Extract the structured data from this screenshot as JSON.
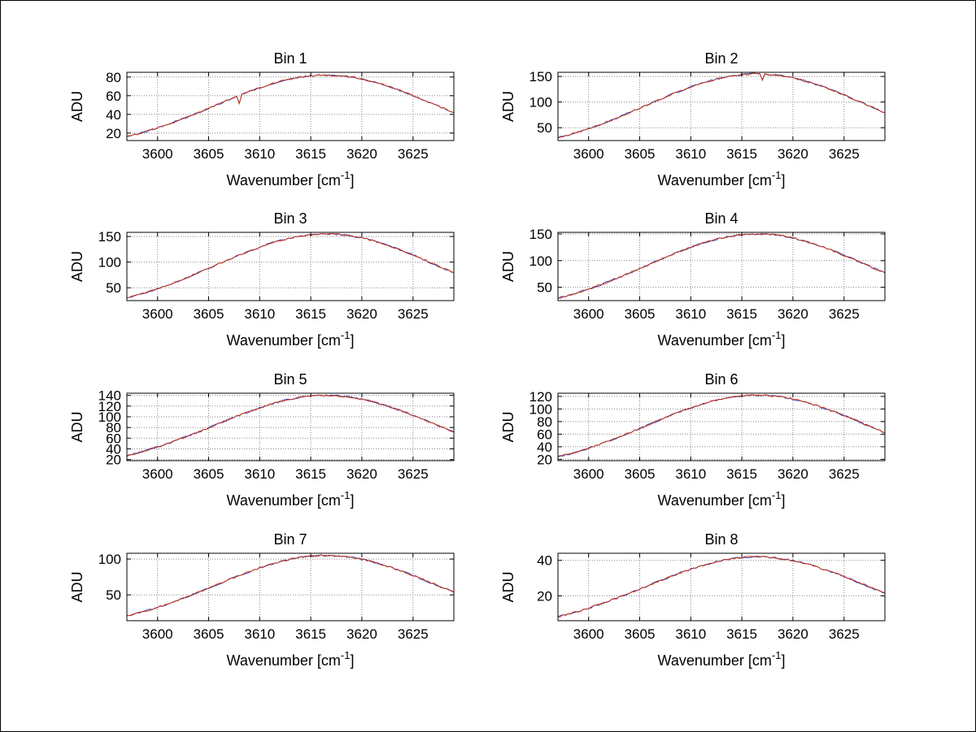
{
  "figure": {
    "background": "#ffffff",
    "border_color": "#000000",
    "grid_color": "#888888",
    "axis_color": "#000000"
  },
  "chart_data": {
    "x_values": [
      3597,
      3598,
      3599,
      3600,
      3601,
      3602,
      3603,
      3604,
      3605,
      3606,
      3607,
      3608,
      3609,
      3610,
      3611,
      3612,
      3613,
      3614,
      3615,
      3616,
      3617,
      3618,
      3619,
      3620,
      3621,
      3622,
      3623,
      3624,
      3625,
      3626,
      3627,
      3628,
      3629
    ],
    "charts": [
      {
        "id": "bin-1",
        "type": "line",
        "title": "Bin 1",
        "xlabel_main": "Wavenumber [cm",
        "xlabel_sup": "-1",
        "xlabel_close": "]",
        "ylabel": "ADU",
        "xlim": [
          3597,
          3629
        ],
        "ylim": [
          12,
          85
        ],
        "x_ticks": [
          3600,
          3605,
          3610,
          3615,
          3620,
          3625
        ],
        "y_ticks": [
          20,
          40,
          60,
          80
        ],
        "grid": true,
        "series": [
          {
            "name": "trace-blue",
            "color": "#3344bb"
          },
          {
            "name": "trace-red",
            "color": "#cc3311"
          }
        ],
        "values": [
          16.1,
          18.9,
          22.1,
          25.5,
          29.3,
          33.3,
          37.6,
          42.0,
          46.5,
          51.1,
          55.7,
          60.2,
          64.5,
          68.4,
          72.0,
          75.2,
          77.8,
          79.9,
          81.2,
          81.9,
          81.9,
          81.2,
          79.9,
          77.8,
          75.2,
          72.0,
          68.4,
          64.5,
          60.2,
          55.7,
          51.1,
          46.5,
          42.0
        ],
        "dips": [
          {
            "x": 3608,
            "depth": 8
          }
        ]
      },
      {
        "id": "bin-2",
        "type": "line",
        "title": "Bin 2",
        "xlabel_main": "Wavenumber [cm",
        "xlabel_sup": "-1",
        "xlabel_close": "]",
        "ylabel": "ADU",
        "xlim": [
          3597,
          3629
        ],
        "ylim": [
          25,
          158
        ],
        "x_ticks": [
          3600,
          3605,
          3610,
          3615,
          3620,
          3625
        ],
        "y_ticks": [
          50,
          100,
          150
        ],
        "grid": true,
        "series": [
          {
            "name": "trace-blue",
            "color": "#3344bb"
          },
          {
            "name": "trace-red",
            "color": "#cc3311"
          }
        ],
        "values": [
          30.4,
          35.8,
          41.7,
          48.2,
          55.3,
          62.9,
          71.0,
          79.4,
          87.9,
          96.6,
          105.2,
          113.8,
          121.8,
          129.3,
          136.1,
          142.1,
          147.1,
          151.0,
          153.5,
          154.8,
          154.8,
          153.5,
          151.0,
          147.1,
          142.1,
          136.1,
          129.3,
          121.8,
          113.8,
          105.2,
          96.6,
          87.9,
          79.4
        ],
        "dips": [
          {
            "x": 3617,
            "depth": 13
          }
        ]
      },
      {
        "id": "bin-3",
        "type": "line",
        "title": "Bin 3",
        "xlabel_main": "Wavenumber [cm",
        "xlabel_sup": "-1",
        "xlabel_close": "]",
        "ylabel": "ADU",
        "xlim": [
          3597,
          3629
        ],
        "ylim": [
          25,
          158
        ],
        "x_ticks": [
          3600,
          3605,
          3610,
          3615,
          3620,
          3625
        ],
        "y_ticks": [
          50,
          100,
          150
        ],
        "grid": true,
        "series": [
          {
            "name": "trace-blue",
            "color": "#3344bb"
          },
          {
            "name": "trace-red",
            "color": "#cc3311"
          }
        ],
        "values": [
          30.4,
          35.8,
          41.7,
          48.2,
          55.3,
          62.9,
          71.0,
          79.4,
          87.9,
          96.6,
          105.2,
          113.8,
          121.8,
          129.3,
          136.1,
          142.1,
          147.1,
          151.0,
          153.5,
          154.8,
          154.8,
          153.5,
          151.0,
          147.1,
          142.1,
          136.1,
          129.3,
          121.8,
          113.8,
          105.2,
          96.6,
          87.9,
          79.4
        ],
        "dips": []
      },
      {
        "id": "bin-4",
        "type": "line",
        "title": "Bin 4",
        "xlabel_main": "Wavenumber [cm",
        "xlabel_sup": "-1",
        "xlabel_close": "]",
        "ylabel": "ADU",
        "xlim": [
          3597,
          3629
        ],
        "ylim": [
          25,
          153
        ],
        "x_ticks": [
          3600,
          3605,
          3610,
          3615,
          3620,
          3625
        ],
        "y_ticks": [
          50,
          100,
          150
        ],
        "grid": true,
        "series": [
          {
            "name": "trace-blue",
            "color": "#3344bb"
          },
          {
            "name": "trace-red",
            "color": "#cc3311"
          }
        ],
        "values": [
          29.4,
          34.7,
          40.4,
          46.7,
          53.6,
          60.9,
          68.7,
          76.8,
          85.1,
          93.5,
          101.9,
          110.1,
          117.9,
          125.1,
          131.7,
          137.6,
          142.4,
          146.1,
          148.5,
          149.9,
          149.9,
          148.5,
          146.1,
          142.4,
          137.6,
          131.7,
          125.1,
          117.9,
          110.1,
          101.9,
          93.5,
          85.1,
          76.8
        ],
        "dips": []
      },
      {
        "id": "bin-5",
        "type": "line",
        "title": "Bin 5",
        "xlabel_main": "Wavenumber [cm",
        "xlabel_sup": "-1",
        "xlabel_close": "]",
        "ylabel": "ADU",
        "xlim": [
          3597,
          3629
        ],
        "ylim": [
          18,
          144
        ],
        "x_ticks": [
          3600,
          3605,
          3610,
          3615,
          3620,
          3625
        ],
        "y_ticks": [
          20,
          40,
          60,
          80,
          100,
          120,
          140
        ],
        "grid": true,
        "series": [
          {
            "name": "trace-blue",
            "color": "#3344bb"
          },
          {
            "name": "trace-red",
            "color": "#cc3311"
          }
        ],
        "values": [
          27.4,
          32.3,
          37.7,
          43.5,
          50.0,
          56.8,
          64.1,
          71.7,
          79.4,
          87.2,
          95.1,
          102.8,
          110.0,
          116.8,
          122.9,
          128.4,
          132.9,
          136.4,
          138.6,
          139.9,
          139.9,
          138.6,
          136.4,
          132.9,
          128.4,
          122.9,
          116.8,
          110.0,
          102.8,
          95.1,
          87.2,
          79.4,
          71.7
        ],
        "dips": []
      },
      {
        "id": "bin-6",
        "type": "line",
        "title": "Bin 6",
        "xlabel_main": "Wavenumber [cm",
        "xlabel_sup": "-1",
        "xlabel_close": "]",
        "ylabel": "ADU",
        "xlim": [
          3597,
          3629
        ],
        "ylim": [
          18,
          125
        ],
        "x_ticks": [
          3600,
          3605,
          3610,
          3615,
          3620,
          3625
        ],
        "y_ticks": [
          20,
          40,
          60,
          80,
          100,
          120
        ],
        "grid": true,
        "series": [
          {
            "name": "trace-blue",
            "color": "#3344bb"
          },
          {
            "name": "trace-red",
            "color": "#cc3311"
          }
        ],
        "values": [
          23.9,
          28.2,
          32.8,
          37.9,
          43.6,
          49.5,
          55.9,
          62.5,
          69.2,
          76.0,
          82.8,
          89.5,
          95.9,
          101.7,
          107.1,
          111.9,
          115.8,
          118.8,
          120.8,
          121.9,
          121.9,
          120.8,
          118.8,
          115.8,
          111.9,
          107.1,
          101.7,
          95.9,
          89.5,
          82.8,
          76.0,
          69.2,
          62.5
        ],
        "dips": []
      },
      {
        "id": "bin-7",
        "type": "line",
        "title": "Bin 7",
        "xlabel_main": "Wavenumber [cm",
        "xlabel_sup": "-1",
        "xlabel_close": "]",
        "ylabel": "ADU",
        "xlim": [
          3597,
          3629
        ],
        "ylim": [
          14,
          108
        ],
        "x_ticks": [
          3600,
          3605,
          3610,
          3615,
          3620,
          3625
        ],
        "y_ticks": [
          50,
          100
        ],
        "grid": true,
        "series": [
          {
            "name": "trace-blue",
            "color": "#3344bb"
          },
          {
            "name": "trace-red",
            "color": "#cc3311"
          }
        ],
        "values": [
          20.6,
          24.3,
          28.2,
          32.7,
          37.5,
          42.6,
          48.1,
          53.8,
          59.5,
          65.4,
          71.3,
          77.1,
          82.5,
          87.6,
          92.2,
          96.3,
          99.6,
          102.3,
          104.0,
          104.9,
          104.9,
          104.0,
          102.3,
          99.6,
          96.3,
          92.2,
          87.6,
          82.5,
          77.1,
          71.3,
          65.4,
          59.5,
          53.8
        ],
        "dips": []
      },
      {
        "id": "bin-8",
        "type": "line",
        "title": "Bin 8",
        "xlabel_main": "Wavenumber [cm",
        "xlabel_sup": "-1",
        "xlabel_close": "]",
        "ylabel": "ADU",
        "xlim": [
          3597,
          3629
        ],
        "ylim": [
          6,
          44
        ],
        "x_ticks": [
          3600,
          3605,
          3610,
          3615,
          3620,
          3625
        ],
        "y_ticks": [
          20,
          40
        ],
        "grid": true,
        "series": [
          {
            "name": "trace-blue",
            "color": "#3344bb"
          },
          {
            "name": "trace-red",
            "color": "#cc3311"
          }
        ],
        "values": [
          8.2,
          9.7,
          11.3,
          13.1,
          15.0,
          17.1,
          19.2,
          21.5,
          23.8,
          26.2,
          28.5,
          30.8,
          33.0,
          35.0,
          36.9,
          38.5,
          39.9,
          40.9,
          41.6,
          42.0,
          42.0,
          41.6,
          40.9,
          39.9,
          38.5,
          36.9,
          35.0,
          33.0,
          30.8,
          28.5,
          26.2,
          23.8,
          21.5
        ],
        "dips": []
      }
    ]
  }
}
